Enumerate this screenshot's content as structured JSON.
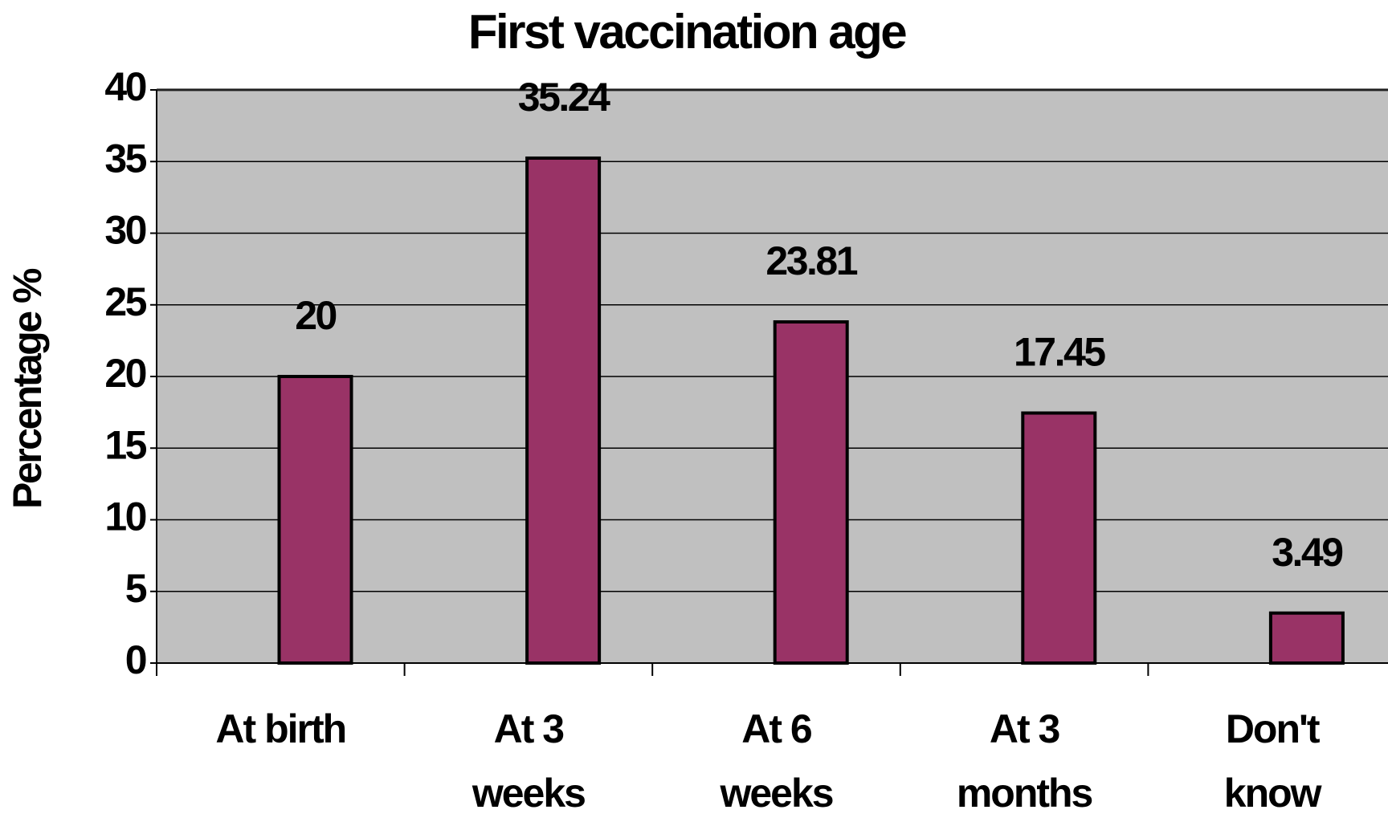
{
  "chart_data": {
    "type": "bar",
    "title": "First vaccination age",
    "y_label": "Percentage %",
    "categories": [
      "At birth",
      "At 3\nweeks",
      "At 6\nweeks",
      "At 3\nmonths",
      "Don't\nknow"
    ],
    "values": [
      20,
      35.24,
      23.81,
      17.45,
      3.49
    ],
    "color": "#993366",
    "ylim": [
      0,
      40
    ],
    "yticks": [
      0,
      5,
      10,
      15,
      20,
      25,
      30,
      35,
      40
    ],
    "grid": true
  }
}
